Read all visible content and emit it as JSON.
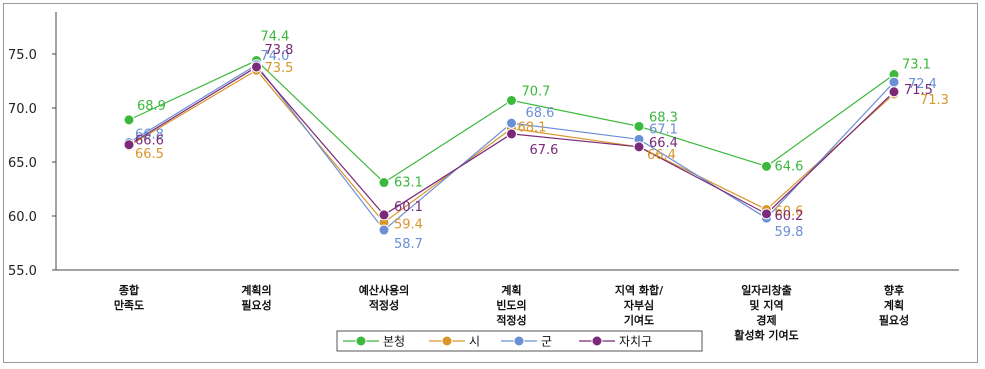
{
  "chart_data": {
    "type": "line",
    "title": "",
    "xlabel": "",
    "ylabel": "",
    "ylim": [
      55.0,
      75.0
    ],
    "yticks": [
      "75.0",
      "70.0",
      "65.0",
      "60.0",
      "55.0"
    ],
    "ytick_values": [
      75,
      70,
      65,
      60,
      55
    ],
    "categories": [
      [
        "종합",
        "만족도"
      ],
      [
        "계획의",
        "필요성"
      ],
      [
        "예산사용의",
        "적정성"
      ],
      [
        "계획",
        "빈도의",
        "적정성"
      ],
      [
        "지역 화합/",
        "자부심",
        "기여도"
      ],
      [
        "일자리창출",
        "및 지역",
        "경제",
        "활성화 기여도"
      ],
      [
        "향후",
        "계획",
        "필요성"
      ]
    ],
    "series": [
      {
        "name": "본청",
        "color": "#3cb83c",
        "values": [
          68.9,
          74.4,
          63.1,
          70.7,
          68.3,
          64.6,
          73.1
        ],
        "labels": [
          "68.9",
          "74.4",
          "63.1",
          "70.7",
          "68.3",
          "64.6",
          "73.1"
        ]
      },
      {
        "name": "시",
        "color": "#d9962b",
        "values": [
          66.5,
          73.5,
          59.4,
          68.1,
          66.4,
          60.6,
          71.3
        ],
        "labels": [
          "66.5",
          "73.5",
          "59.4",
          "68.1",
          "66.4",
          "60.6",
          "71.3"
        ]
      },
      {
        "name": "군",
        "color": "#6b8fd6",
        "values": [
          66.8,
          74.0,
          58.7,
          68.6,
          67.1,
          59.8,
          72.4
        ],
        "labels": [
          "66.8",
          "74.0",
          "58.7",
          "68.6",
          "67.1",
          "59.8",
          "72.4"
        ]
      },
      {
        "name": "자치구",
        "color": "#7a2a78",
        "values": [
          66.6,
          73.8,
          60.1,
          67.6,
          66.4,
          60.2,
          71.5
        ],
        "labels": [
          "66.6",
          "73.8",
          "60.1",
          "67.6",
          "66.4",
          "60.2",
          "71.5"
        ]
      }
    ],
    "grid": false,
    "legend": "bottom"
  }
}
